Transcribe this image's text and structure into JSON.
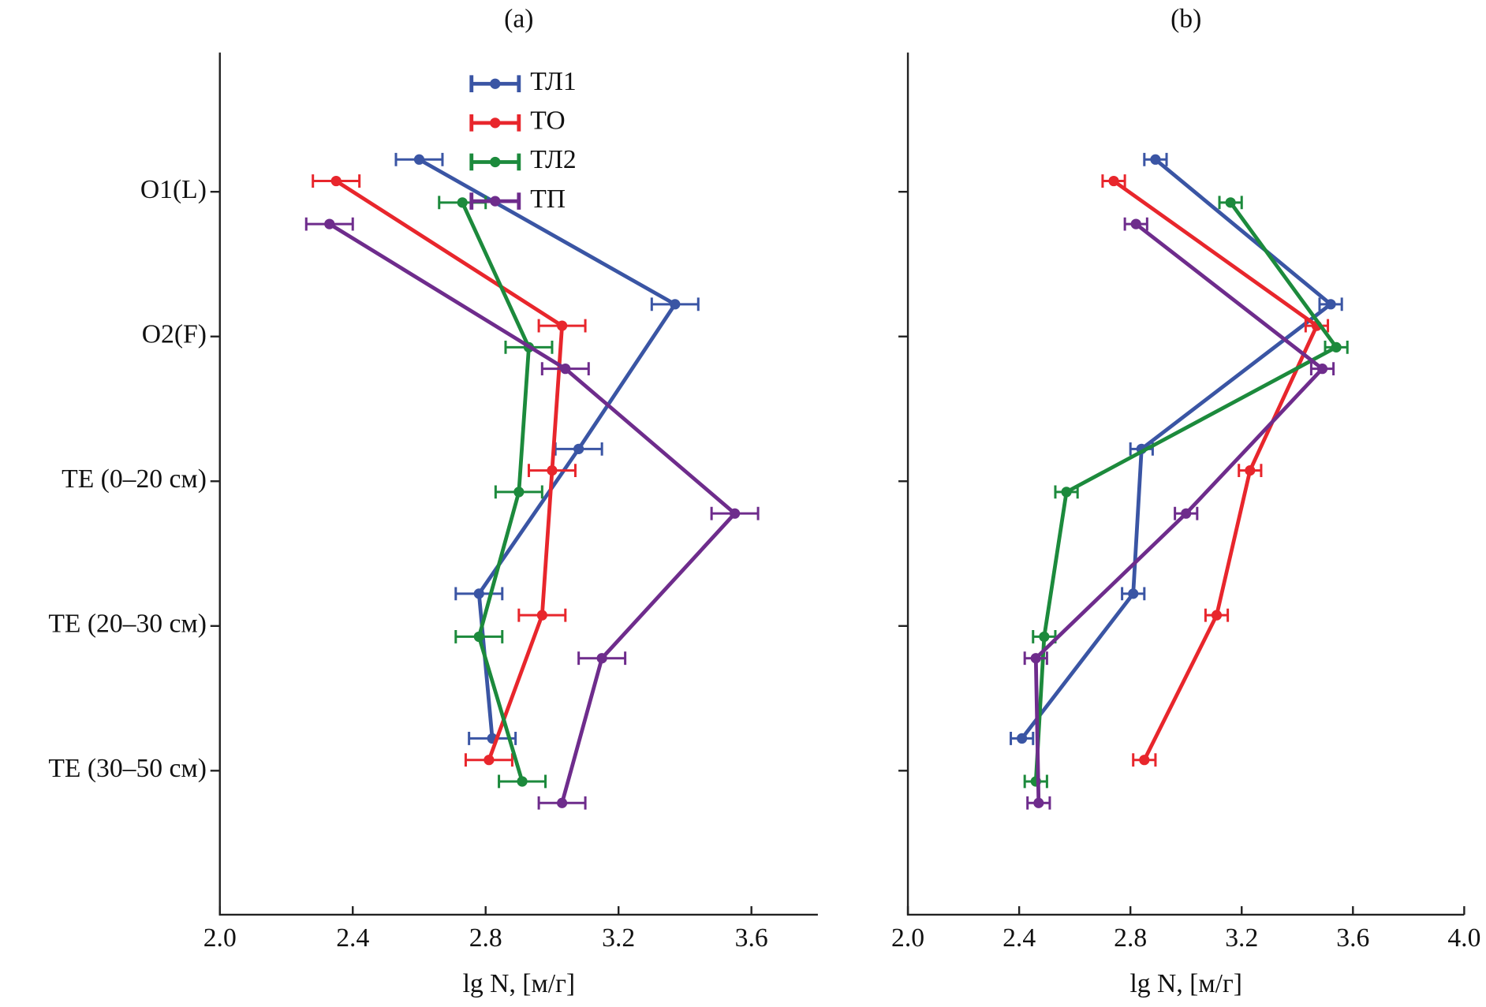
{
  "chart_data": [
    {
      "type": "line",
      "title": "(a)",
      "xlabel": "lg N, [м/г]",
      "categories": [
        "O1(L)",
        "O2(F)",
        "TE (0–20 см)",
        "TE (20–30 см)",
        "TE (30–50 см)"
      ],
      "xlim": [
        2.0,
        3.8
      ],
      "xticks": [
        {
          "value": 2.0,
          "label": "2.0"
        },
        {
          "value": 2.4,
          "label": "2.4"
        },
        {
          "value": 2.8,
          "label": "2.8"
        },
        {
          "value": 3.2,
          "label": "3.2"
        },
        {
          "value": 3.6,
          "label": "3.6"
        }
      ],
      "legend": "upper center",
      "series": [
        {
          "name": "ТЛ1",
          "color": "#3a55a4",
          "values": [
            2.6,
            3.37,
            3.08,
            2.78,
            2.82
          ],
          "errors": [
            0.07,
            0.07,
            0.07,
            0.07,
            0.07
          ]
        },
        {
          "name": "ТО",
          "color": "#e8262c",
          "values": [
            2.35,
            3.03,
            3.0,
            2.97,
            2.81
          ],
          "errors": [
            0.07,
            0.07,
            0.07,
            0.07,
            0.07
          ]
        },
        {
          "name": "ТЛ2",
          "color": "#1c8a3c",
          "values": [
            2.73,
            2.93,
            2.9,
            2.78,
            2.91
          ],
          "errors": [
            0.07,
            0.07,
            0.07,
            0.07,
            0.07
          ]
        },
        {
          "name": "ТП",
          "color": "#6e2c8c",
          "values": [
            2.33,
            3.04,
            3.55,
            3.15,
            3.03
          ],
          "errors": [
            0.07,
            0.07,
            0.07,
            0.07,
            0.07
          ]
        }
      ]
    },
    {
      "type": "line",
      "title": "(b)",
      "xlabel": "lg N, [м/г]",
      "xlim": [
        2.0,
        4.0
      ],
      "xticks": [
        {
          "value": 2.0,
          "label": "2.0"
        },
        {
          "value": 2.4,
          "label": "2.4"
        },
        {
          "value": 2.8,
          "label": "2.8"
        },
        {
          "value": 3.2,
          "label": "3.2"
        },
        {
          "value": 3.6,
          "label": "3.6"
        },
        {
          "value": 4.0,
          "label": "4.0"
        }
      ],
      "series": [
        {
          "color": "#3a55a4",
          "values": [
            2.89,
            3.52,
            2.84,
            2.81,
            2.41
          ],
          "errors": [
            0.04,
            0.04,
            0.04,
            0.04,
            0.04
          ]
        },
        {
          "color": "#e8262c",
          "values": [
            2.74,
            3.47,
            3.23,
            3.11,
            2.85
          ],
          "errors": [
            0.04,
            0.04,
            0.04,
            0.04,
            0.04
          ]
        },
        {
          "color": "#1c8a3c",
          "values": [
            3.16,
            3.54,
            2.57,
            2.49,
            2.46
          ],
          "errors": [
            0.04,
            0.04,
            0.04,
            0.04,
            0.04
          ]
        },
        {
          "color": "#6e2c8c",
          "values": [
            2.82,
            3.49,
            3.0,
            2.46,
            2.47
          ],
          "errors": [
            0.04,
            0.04,
            0.04,
            0.04,
            0.04
          ]
        }
      ]
    }
  ]
}
